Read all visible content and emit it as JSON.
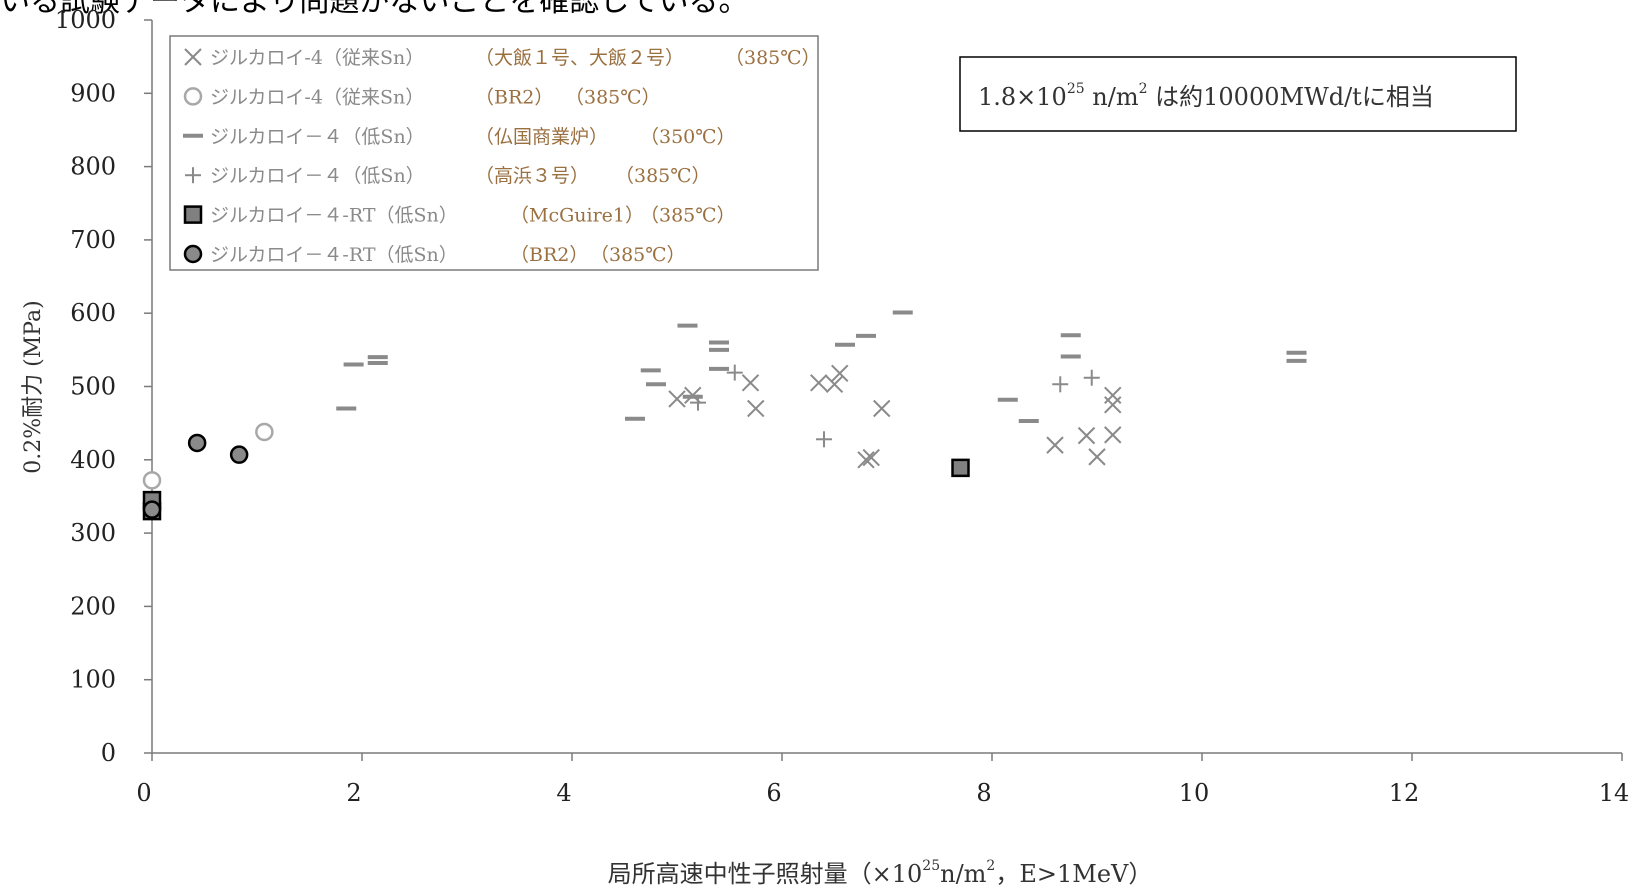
{
  "page": {
    "cropped_heading": "いる試験データにより問題がないことを確認している。"
  },
  "chart_data": {
    "type": "scatter",
    "title": "",
    "xlabel_parts": [
      "局所高速中性子照射量（×10",
      "25",
      "n/m",
      "2",
      "，E>1MeV）"
    ],
    "ylabel": "0.2%耐力 (MPa)",
    "xlim": [
      0,
      14
    ],
    "ylim": [
      0,
      1000
    ],
    "x_ticks": [
      0,
      2,
      4,
      6,
      8,
      10,
      12,
      14
    ],
    "y_ticks": [
      0,
      100,
      200,
      300,
      400,
      500,
      600,
      700,
      800,
      900,
      1000
    ],
    "grid": false,
    "legend_position": "top-left",
    "annotation_parts": [
      "1.8×10",
      "25",
      " n/m",
      "2",
      " は約10000MWd/tに相当"
    ],
    "series": [
      {
        "name": [
          "ジルカロイ-4（従来Sn）",
          "（大飯１号、大飯２号）",
          "（385℃）"
        ],
        "marker": "x",
        "color": "#8a8a8a",
        "points": [
          [
            5.0,
            483
          ],
          [
            5.15,
            488
          ],
          [
            5.7,
            505
          ],
          [
            5.75,
            470
          ],
          [
            6.35,
            505
          ],
          [
            6.5,
            503
          ],
          [
            6.55,
            518
          ],
          [
            6.8,
            400
          ],
          [
            6.85,
            403
          ],
          [
            6.95,
            470
          ],
          [
            8.6,
            420
          ],
          [
            8.9,
            433
          ],
          [
            9.0,
            404
          ],
          [
            9.15,
            475
          ],
          [
            9.15,
            488
          ],
          [
            9.15,
            434
          ]
        ]
      },
      {
        "name": [
          "ジルカロイ-4（従来Sn）",
          "（BR2）",
          "（385℃）"
        ],
        "marker": "circle-open",
        "color": "#a8a8a8",
        "points": [
          [
            1.07,
            438
          ],
          [
            0.0,
            372
          ]
        ]
      },
      {
        "name": [
          "ジルカロイ－４（低Sn）",
          "（仏国商業炉）",
          "（350℃）"
        ],
        "marker": "dash",
        "color": "#8a8a8a",
        "points": [
          [
            1.85,
            470
          ],
          [
            1.92,
            530
          ],
          [
            2.15,
            532
          ],
          [
            2.15,
            540
          ],
          [
            4.6,
            456
          ],
          [
            4.75,
            522
          ],
          [
            4.8,
            503
          ],
          [
            5.1,
            583
          ],
          [
            5.15,
            486
          ],
          [
            5.4,
            560
          ],
          [
            5.4,
            550
          ],
          [
            5.4,
            524
          ],
          [
            6.6,
            557
          ],
          [
            6.8,
            569
          ],
          [
            7.15,
            601
          ],
          [
            8.15,
            482
          ],
          [
            8.35,
            453
          ],
          [
            8.75,
            570
          ],
          [
            8.75,
            541
          ],
          [
            10.9,
            546
          ],
          [
            10.9,
            535
          ]
        ]
      },
      {
        "name": [
          "ジルカロイ－４（低Sn）",
          "（高浜３号）",
          "（385℃）"
        ],
        "marker": "plus",
        "color": "#8a8a8a",
        "points": [
          [
            5.2,
            478
          ],
          [
            5.55,
            519
          ],
          [
            6.4,
            428
          ],
          [
            8.65,
            503
          ],
          [
            8.95,
            512
          ]
        ]
      },
      {
        "name": [
          "ジルカロイ－４-RT（低Sn）",
          "（McGuire1）",
          "（385℃）"
        ],
        "marker": "square",
        "color": "#808080",
        "points": [
          [
            0.0,
            330
          ],
          [
            0.0,
            345
          ],
          [
            7.7,
            389
          ]
        ]
      },
      {
        "name": [
          "ジルカロイ－４-RT（低Sn）",
          "（BR2）",
          "（385℃）"
        ],
        "marker": "circle-filled",
        "color": "#8a8a8a",
        "points": [
          [
            0.43,
            423
          ],
          [
            0.83,
            407
          ],
          [
            0.0,
            332
          ]
        ]
      }
    ],
    "colors": {
      "axis": "#7a7a7a",
      "legend_text": "#8a8a8a",
      "legend_accent": "#9a7040",
      "text": "#222222"
    }
  }
}
